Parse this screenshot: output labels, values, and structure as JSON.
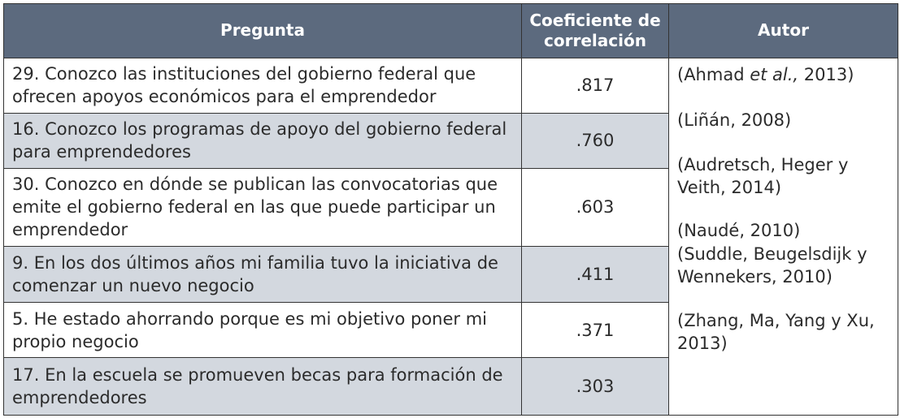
{
  "table": {
    "headers": {
      "question": "Pregunta",
      "coefficient_line1": "Coeficiente de",
      "coefficient_line2": "correlación",
      "author": "Autor"
    },
    "rows": [
      {
        "question": "29. Conozco las instituciones del gobierno federal que ofrecen apoyos económicos para el emprendedor",
        "coefficient": ".817"
      },
      {
        "question": "16. Conozco los programas de apoyo del gobierno federal para emprendedores",
        "coefficient": ".760"
      },
      {
        "question": "30. Conozco en dónde se publican las convocatorias que emite el gobierno federal en las que puede participar un emprendedor",
        "coefficient": ".603"
      },
      {
        "question": "9. En los dos últimos años mi familia tuvo la iniciativa de comenzar un nuevo negocio",
        "coefficient": ".411"
      },
      {
        "question": "5. He estado ahorrando porque es mi objetivo poner mi propio negocio",
        "coefficient": ".371"
      },
      {
        "question": "17. En la escuela se promueven becas para formación de emprendedores",
        "coefficient": ".303"
      }
    ],
    "authors": {
      "a1_pre": "(Ahmad ",
      "a1_etal": "et al.,",
      "a1_post": " 2013)",
      "a2": "(Liñán, 2008)",
      "a3": "(Audretsch, Heger y Veith, 2014)",
      "a4": "(Naudé, 2010)",
      "a5": "(Suddle, Beugelsdijk y Wennekers, 2010)",
      "a6": "(Zhang, Ma, Yang y Xu, 2013)"
    },
    "colors": {
      "header_bg": "#5c6a7e",
      "shaded_row_bg": "#d3d8df",
      "border": "#333333"
    }
  }
}
